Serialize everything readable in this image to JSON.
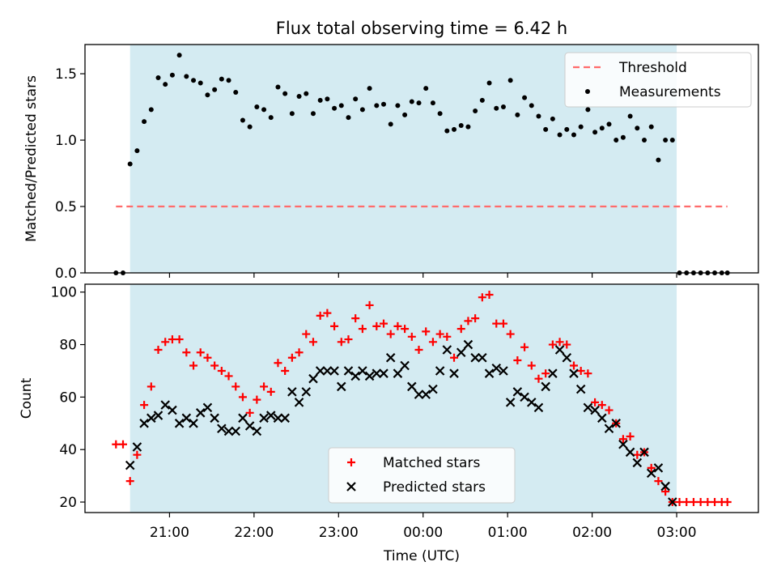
{
  "title": "Flux total observing time = 6.42 h",
  "colors": {
    "shade": "#add8e6",
    "threshold": "#ff6b6b",
    "measurement": "#000000",
    "matched": "#ff0000",
    "predicted": "#000000"
  },
  "chart_data": [
    {
      "type": "scatter",
      "panel": "top",
      "ylabel": "Matched/Predicted stars",
      "xlabel": "",
      "ylim": [
        0,
        1.72
      ],
      "yticks": [
        0.0,
        0.5,
        1.0,
        1.5
      ],
      "ytick_labels": [
        "0.0",
        "0.5",
        "1.0",
        "1.5"
      ],
      "shaded_span": [
        "20:32",
        "03:00"
      ],
      "threshold": {
        "name": "Threshold",
        "value": 0.5,
        "x_range": [
          "20:22",
          "03:36"
        ],
        "style": "dashed"
      },
      "legend": {
        "placement": "top-right",
        "entries": [
          "Threshold",
          "Measurements"
        ]
      },
      "series": [
        {
          "name": "Measurements",
          "marker": "dot",
          "points": [
            [
              "20:22",
              0
            ],
            [
              "20:27",
              0
            ],
            [
              "20:32",
              0.82
            ],
            [
              "20:37",
              0.92
            ],
            [
              "20:42",
              1.14
            ],
            [
              "20:47",
              1.23
            ],
            [
              "20:52",
              1.47
            ],
            [
              "20:57",
              1.42
            ],
            [
              "21:02",
              1.49
            ],
            [
              "21:07",
              1.64
            ],
            [
              "21:12",
              1.48
            ],
            [
              "21:17",
              1.45
            ],
            [
              "21:22",
              1.43
            ],
            [
              "21:27",
              1.34
            ],
            [
              "21:32",
              1.38
            ],
            [
              "21:37",
              1.46
            ],
            [
              "21:42",
              1.45
            ],
            [
              "21:47",
              1.36
            ],
            [
              "21:52",
              1.15
            ],
            [
              "21:57",
              1.1
            ],
            [
              "22:02",
              1.25
            ],
            [
              "22:07",
              1.23
            ],
            [
              "22:12",
              1.17
            ],
            [
              "22:17",
              1.4
            ],
            [
              "22:22",
              1.35
            ],
            [
              "22:27",
              1.2
            ],
            [
              "22:32",
              1.33
            ],
            [
              "22:37",
              1.35
            ],
            [
              "22:42",
              1.2
            ],
            [
              "22:47",
              1.3
            ],
            [
              "22:52",
              1.31
            ],
            [
              "22:57",
              1.24
            ],
            [
              "23:02",
              1.26
            ],
            [
              "23:07",
              1.17
            ],
            [
              "23:12",
              1.31
            ],
            [
              "23:17",
              1.23
            ],
            [
              "23:22",
              1.39
            ],
            [
              "23:27",
              1.26
            ],
            [
              "23:32",
              1.27
            ],
            [
              "23:37",
              1.12
            ],
            [
              "23:42",
              1.26
            ],
            [
              "23:47",
              1.19
            ],
            [
              "23:52",
              1.29
            ],
            [
              "23:57",
              1.28
            ],
            [
              "00:02",
              1.39
            ],
            [
              "00:07",
              1.28
            ],
            [
              "00:12",
              1.2
            ],
            [
              "00:17",
              1.07
            ],
            [
              "00:22",
              1.08
            ],
            [
              "00:27",
              1.11
            ],
            [
              "00:32",
              1.1
            ],
            [
              "00:37",
              1.22
            ],
            [
              "00:42",
              1.3
            ],
            [
              "00:47",
              1.43
            ],
            [
              "00:52",
              1.24
            ],
            [
              "00:57",
              1.25
            ],
            [
              "01:02",
              1.45
            ],
            [
              "01:07",
              1.19
            ],
            [
              "01:12",
              1.32
            ],
            [
              "01:17",
              1.26
            ],
            [
              "01:22",
              1.18
            ],
            [
              "01:27",
              1.08
            ],
            [
              "01:32",
              1.16
            ],
            [
              "01:37",
              1.04
            ],
            [
              "01:42",
              1.08
            ],
            [
              "01:47",
              1.04
            ],
            [
              "01:52",
              1.1
            ],
            [
              "01:57",
              1.23
            ],
            [
              "02:02",
              1.06
            ],
            [
              "02:07",
              1.09
            ],
            [
              "02:12",
              1.12
            ],
            [
              "02:17",
              1.0
            ],
            [
              "02:22",
              1.02
            ],
            [
              "02:27",
              1.18
            ],
            [
              "02:32",
              1.09
            ],
            [
              "02:37",
              1.0
            ],
            [
              "02:42",
              1.1
            ],
            [
              "02:47",
              0.85
            ],
            [
              "02:52",
              1.0
            ],
            [
              "02:57",
              1.0
            ],
            [
              "03:02",
              0
            ],
            [
              "03:07",
              0
            ],
            [
              "03:12",
              0
            ],
            [
              "03:17",
              0
            ],
            [
              "03:22",
              0
            ],
            [
              "03:27",
              0
            ],
            [
              "03:32",
              0
            ],
            [
              "03:36",
              0
            ]
          ]
        }
      ]
    },
    {
      "type": "scatter",
      "panel": "bottom",
      "xlabel": "Time (UTC)",
      "ylabel": "Count",
      "ylim": [
        16,
        103
      ],
      "yticks": [
        20,
        40,
        60,
        80,
        100
      ],
      "ytick_labels": [
        "20",
        "40",
        "60",
        "80",
        "100"
      ],
      "xlim": [
        "20:00",
        "03:58"
      ],
      "xtick_labels": [
        "21:00",
        "22:00",
        "23:00",
        "00:00",
        "01:00",
        "02:00",
        "03:00"
      ],
      "shaded_span": [
        "20:32",
        "03:00"
      ],
      "legend": {
        "placement": "bottom-center",
        "entries": [
          "Matched stars",
          "Predicted stars"
        ]
      },
      "series": [
        {
          "name": "Matched stars",
          "marker": "plus",
          "points": [
            [
              "20:22",
              42
            ],
            [
              "20:27",
              42
            ],
            [
              "20:32",
              28
            ],
            [
              "20:37",
              38
            ],
            [
              "20:42",
              57
            ],
            [
              "20:47",
              64
            ],
            [
              "20:52",
              78
            ],
            [
              "20:57",
              81
            ],
            [
              "21:02",
              82
            ],
            [
              "21:07",
              82
            ],
            [
              "21:12",
              77
            ],
            [
              "21:17",
              72
            ],
            [
              "21:22",
              77
            ],
            [
              "21:27",
              75
            ],
            [
              "21:32",
              72
            ],
            [
              "21:37",
              70
            ],
            [
              "21:42",
              68
            ],
            [
              "21:47",
              64
            ],
            [
              "21:52",
              60
            ],
            [
              "21:57",
              54
            ],
            [
              "22:02",
              59
            ],
            [
              "22:07",
              64
            ],
            [
              "22:12",
              62
            ],
            [
              "22:17",
              73
            ],
            [
              "22:22",
              70
            ],
            [
              "22:27",
              75
            ],
            [
              "22:32",
              77
            ],
            [
              "22:37",
              84
            ],
            [
              "22:42",
              81
            ],
            [
              "22:47",
              91
            ],
            [
              "22:52",
              92
            ],
            [
              "22:57",
              87
            ],
            [
              "23:02",
              81
            ],
            [
              "23:07",
              82
            ],
            [
              "23:12",
              90
            ],
            [
              "23:17",
              86
            ],
            [
              "23:22",
              95
            ],
            [
              "23:27",
              87
            ],
            [
              "23:32",
              88
            ],
            [
              "23:37",
              84
            ],
            [
              "23:42",
              87
            ],
            [
              "23:47",
              86
            ],
            [
              "23:52",
              83
            ],
            [
              "23:57",
              78
            ],
            [
              "00:02",
              85
            ],
            [
              "00:07",
              81
            ],
            [
              "00:12",
              84
            ],
            [
              "00:17",
              83
            ],
            [
              "00:22",
              75
            ],
            [
              "00:27",
              86
            ],
            [
              "00:32",
              89
            ],
            [
              "00:37",
              90
            ],
            [
              "00:42",
              98
            ],
            [
              "00:47",
              99
            ],
            [
              "00:52",
              88
            ],
            [
              "00:57",
              88
            ],
            [
              "01:02",
              84
            ],
            [
              "01:07",
              74
            ],
            [
              "01:12",
              79
            ],
            [
              "01:17",
              72
            ],
            [
              "01:22",
              67
            ],
            [
              "01:27",
              69
            ],
            [
              "01:32",
              80
            ],
            [
              "01:37",
              81
            ],
            [
              "01:42",
              80
            ],
            [
              "01:47",
              72
            ],
            [
              "01:52",
              70
            ],
            [
              "01:57",
              69
            ],
            [
              "02:02",
              58
            ],
            [
              "02:07",
              57
            ],
            [
              "02:12",
              55
            ],
            [
              "02:17",
              50
            ],
            [
              "02:22",
              44
            ],
            [
              "02:27",
              45
            ],
            [
              "02:32",
              38
            ],
            [
              "02:37",
              39
            ],
            [
              "02:42",
              33
            ],
            [
              "02:47",
              28
            ],
            [
              "02:52",
              24
            ],
            [
              "02:57",
              20
            ],
            [
              "03:02",
              20
            ],
            [
              "03:07",
              20
            ],
            [
              "03:12",
              20
            ],
            [
              "03:17",
              20
            ],
            [
              "03:22",
              20
            ],
            [
              "03:27",
              20
            ],
            [
              "03:32",
              20
            ],
            [
              "03:36",
              20
            ]
          ]
        },
        {
          "name": "Predicted stars",
          "marker": "x",
          "points": [
            [
              "20:32",
              34
            ],
            [
              "20:37",
              41
            ],
            [
              "20:42",
              50
            ],
            [
              "20:47",
              52
            ],
            [
              "20:52",
              53
            ],
            [
              "20:57",
              57
            ],
            [
              "21:02",
              55
            ],
            [
              "21:07",
              50
            ],
            [
              "21:12",
              52
            ],
            [
              "21:17",
              50
            ],
            [
              "21:22",
              54
            ],
            [
              "21:27",
              56
            ],
            [
              "21:32",
              52
            ],
            [
              "21:37",
              48
            ],
            [
              "21:42",
              47
            ],
            [
              "21:47",
              47
            ],
            [
              "21:52",
              52
            ],
            [
              "21:57",
              49
            ],
            [
              "22:02",
              47
            ],
            [
              "22:07",
              52
            ],
            [
              "22:12",
              53
            ],
            [
              "22:17",
              52
            ],
            [
              "22:22",
              52
            ],
            [
              "22:27",
              62
            ],
            [
              "22:32",
              58
            ],
            [
              "22:37",
              62
            ],
            [
              "22:42",
              67
            ],
            [
              "22:47",
              70
            ],
            [
              "22:52",
              70
            ],
            [
              "22:57",
              70
            ],
            [
              "23:02",
              64
            ],
            [
              "23:07",
              70
            ],
            [
              "23:12",
              68
            ],
            [
              "23:17",
              70
            ],
            [
              "23:22",
              68
            ],
            [
              "23:27",
              69
            ],
            [
              "23:32",
              69
            ],
            [
              "23:37",
              75
            ],
            [
              "23:42",
              69
            ],
            [
              "23:47",
              72
            ],
            [
              "23:52",
              64
            ],
            [
              "23:57",
              61
            ],
            [
              "00:02",
              61
            ],
            [
              "00:07",
              63
            ],
            [
              "00:12",
              70
            ],
            [
              "00:17",
              78
            ],
            [
              "00:22",
              69
            ],
            [
              "00:27",
              77
            ],
            [
              "00:32",
              80
            ],
            [
              "00:37",
              75
            ],
            [
              "00:42",
              75
            ],
            [
              "00:47",
              69
            ],
            [
              "00:52",
              71
            ],
            [
              "00:57",
              70
            ],
            [
              "01:02",
              58
            ],
            [
              "01:07",
              62
            ],
            [
              "01:12",
              60
            ],
            [
              "01:17",
              58
            ],
            [
              "01:22",
              56
            ],
            [
              "01:27",
              64
            ],
            [
              "01:32",
              69
            ],
            [
              "01:37",
              78
            ],
            [
              "01:42",
              75
            ],
            [
              "01:47",
              69
            ],
            [
              "01:52",
              63
            ],
            [
              "01:57",
              56
            ],
            [
              "02:02",
              55
            ],
            [
              "02:07",
              52
            ],
            [
              "02:12",
              48
            ],
            [
              "02:17",
              50
            ],
            [
              "02:22",
              42
            ],
            [
              "02:27",
              39
            ],
            [
              "02:32",
              35
            ],
            [
              "02:37",
              39
            ],
            [
              "02:42",
              31
            ],
            [
              "02:47",
              33
            ],
            [
              "02:52",
              26
            ],
            [
              "02:57",
              20
            ]
          ]
        }
      ]
    }
  ]
}
